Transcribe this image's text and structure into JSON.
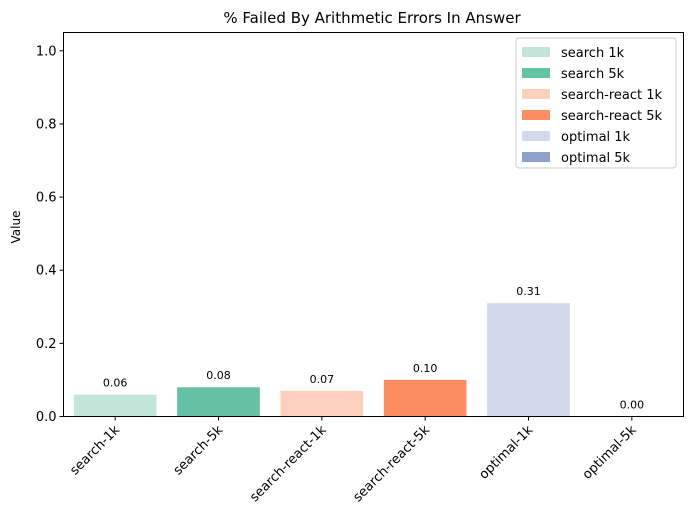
{
  "chart_data": {
    "type": "bar",
    "title": "% Failed By Arithmetic Errors In Answer",
    "xlabel": "",
    "ylabel": "Value",
    "ylim": [
      0,
      1.05
    ],
    "yticks": [
      "0.0",
      "0.2",
      "0.4",
      "0.6",
      "0.8",
      "1.0"
    ],
    "ytick_values": [
      0,
      0.2,
      0.4,
      0.6,
      0.8,
      1.0
    ],
    "categories": [
      "search-1k",
      "search-5k",
      "search-react-1k",
      "search-react-5k",
      "optimal-1k",
      "optimal-5k"
    ],
    "values": [
      0.06,
      0.08,
      0.07,
      0.1,
      0.31,
      0.0
    ],
    "data_labels": [
      "0.06",
      "0.08",
      "0.07",
      "0.10",
      "0.31",
      "0.00"
    ],
    "colors": [
      "#c3e6da",
      "#66c2a5",
      "#fdd0bd",
      "#fc8d62",
      "#d3d9ec",
      "#8da0cb"
    ],
    "grid": false,
    "legend": {
      "placement": "top-right",
      "entries": [
        "search 1k",
        "search 5k",
        "search-react 1k",
        "search-react 5k",
        "optimal 1k",
        "optimal 5k"
      ]
    }
  }
}
